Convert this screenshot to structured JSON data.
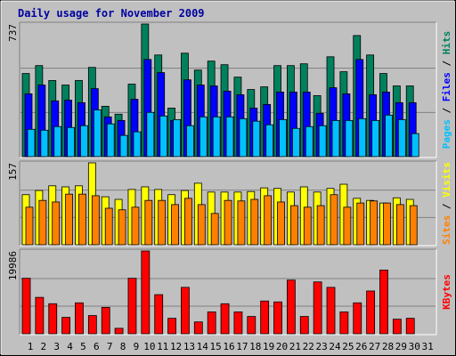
{
  "chart_data": {
    "type": "bar",
    "title": "Daily usage for November 2009",
    "legend_separator": " / ",
    "categories": [
      "1",
      "2",
      "3",
      "4",
      "5",
      "6",
      "7",
      "8",
      "9",
      "10",
      "11",
      "12",
      "13",
      "14",
      "15",
      "16",
      "17",
      "18",
      "19",
      "20",
      "21",
      "22",
      "23",
      "24",
      "25",
      "26",
      "27",
      "28",
      "29",
      "30",
      "31"
    ],
    "category_colors": [
      "#00805c",
      "#00008b",
      "#00008b",
      "#00008b",
      "#00008b",
      "#00008b",
      "#00805c",
      "#00805c",
      "#00008b",
      "#00008b",
      "#00008b",
      "#00008b",
      "#00008b",
      "#00805c",
      "#00805c",
      "#00008b",
      "#00008b",
      "#00008b",
      "#00008b",
      "#00008b",
      "#00805c",
      "#00805c",
      "#00008b",
      "#00008b",
      "#00008b",
      "#00008b",
      "#00008b",
      "#00805c",
      "#00805c",
      "#00008b",
      "#00008b"
    ],
    "panels": [
      {
        "ylim": [
          0,
          737
        ],
        "yticks": [
          737
        ],
        "series": [
          {
            "name": "Hits",
            "color": "#00805c",
            "values": [
              462,
              506,
              423,
              398,
              423,
              496,
              280,
              236,
              403,
              737,
              565,
              270,
              575,
              481,
              531,
              511,
              442,
              373,
              388,
              506,
              506,
              516,
              339,
              555,
              472,
              673,
              565,
              462,
              393,
              393,
              null
            ]
          },
          {
            "name": "Files",
            "color": "#0000ff",
            "values": [
              349,
              398,
              310,
              314,
              300,
              378,
              221,
              201,
              319,
              540,
              467,
              201,
              427,
              398,
              393,
              364,
              344,
              270,
              290,
              359,
              359,
              359,
              241,
              383,
              349,
              540,
              344,
              359,
              300,
              300,
              null
            ]
          },
          {
            "name": "Pages",
            "color": "#00c0ff",
            "values": [
              152,
              147,
              167,
              162,
              172,
              260,
              182,
              118,
              138,
              246,
              226,
              206,
              172,
              221,
              221,
              221,
              211,
              197,
              177,
              206,
              157,
              167,
              172,
              201,
              201,
              211,
              201,
              231,
              206,
              128,
              null
            ]
          }
        ]
      },
      {
        "ylim": [
          0,
          157
        ],
        "yticks": [
          157
        ],
        "series": [
          {
            "name": "Visits",
            "color": "#ffff00",
            "values": [
              96,
              104,
              113,
              111,
              113,
              157,
              92,
              87,
              106,
              111,
              106,
              96,
              104,
              118,
              101,
              101,
              101,
              102,
              109,
              108,
              101,
              111,
              101,
              108,
              116,
              89,
              85,
              80,
              90,
              87,
              null
            ]
          },
          {
            "name": "Sites",
            "color": "#ff8000",
            "values": [
              72,
              85,
              82,
              97,
              97,
              94,
              70,
              67,
              72,
              85,
              85,
              77,
              89,
              77,
              60,
              85,
              84,
              87,
              94,
              82,
              75,
              72,
              75,
              96,
              72,
              80,
              84,
              80,
              77,
              75,
              null
            ]
          }
        ]
      },
      {
        "ylim": [
          0,
          19986
        ],
        "yticks": [
          19986
        ],
        "series": [
          {
            "name": "KBytes",
            "color": "#ff0000",
            "values": [
              13396,
              8784,
              7247,
              3953,
              7466,
              4392,
              6368,
              1318,
              13396,
              19986,
              9443,
              3733,
              11200,
              2855,
              5270,
              7247,
              5270,
              4172,
              7906,
              7686,
              12956,
              4172,
              12517,
              11200,
              5270,
              7466,
              10321,
              15372,
              3514,
              3733,
              null
            ]
          }
        ]
      }
    ]
  }
}
